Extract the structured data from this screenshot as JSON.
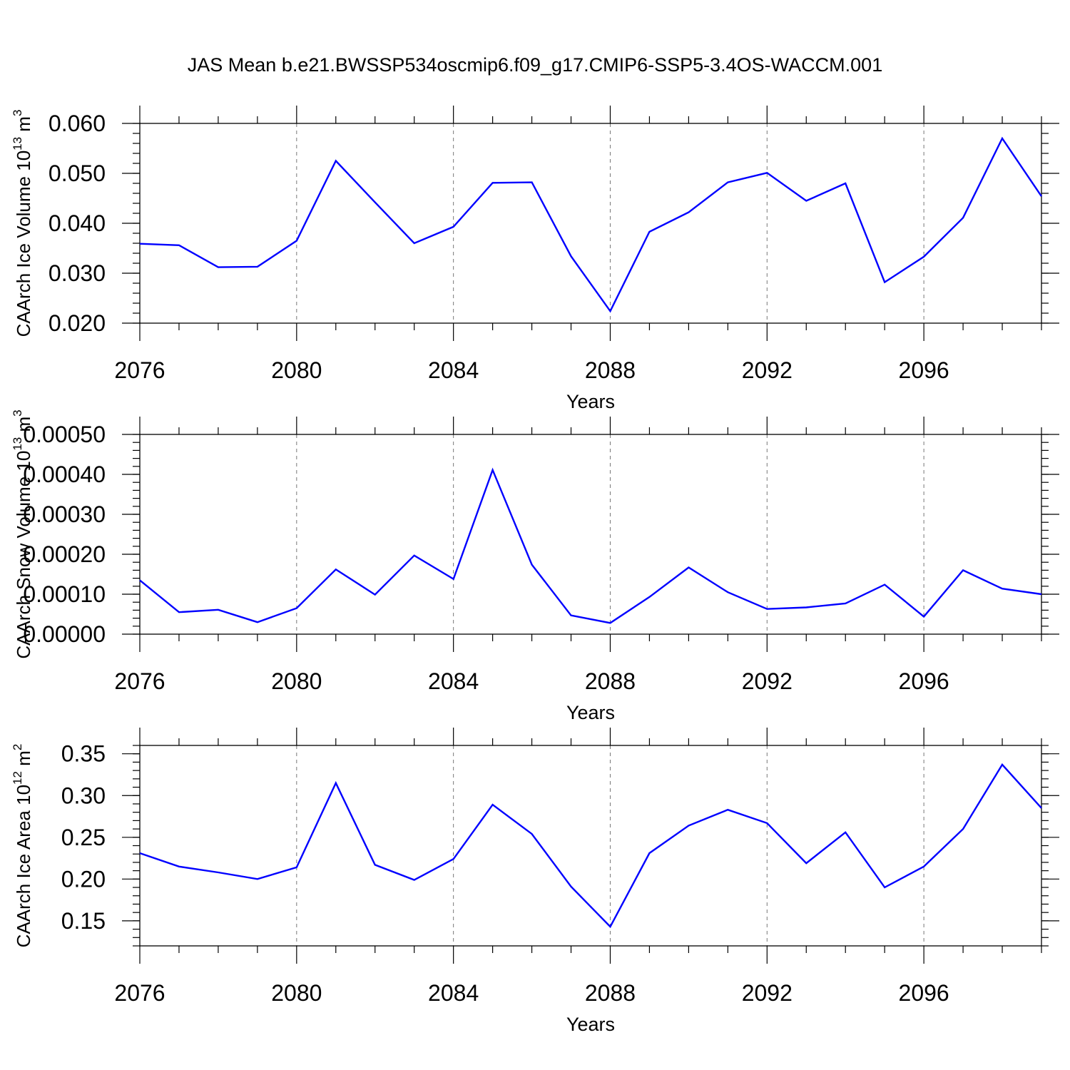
{
  "title": "JAS Mean b.e21.BWSSP534oscmip6.f09_g17.CMIP6-SSP5-3.4OS-WACCM.001",
  "colors": {
    "line": "#0000ff",
    "axis": "#000000",
    "grid": "#777777"
  },
  "chart_data": [
    {
      "type": "line",
      "xlabel": "Years",
      "ylabel": "CAArch Ice Volume 10",
      "ylabel_exp": "13",
      "ylabel_unit": " m",
      "ylabel_unit_exp": "3",
      "xlim": [
        2076,
        2099
      ],
      "ylim": [
        0.02,
        0.06
      ],
      "x_ticks": [
        2076,
        2080,
        2084,
        2088,
        2092,
        2096
      ],
      "x_tick_labels": [
        "2076",
        "2080",
        "2084",
        "2088",
        "2092",
        "2096"
      ],
      "y_ticks": [
        0.02,
        0.03,
        0.04,
        0.05,
        0.06
      ],
      "y_tick_labels": [
        "0.020",
        "0.030",
        "0.040",
        "0.050",
        "0.060"
      ],
      "y_minor_step": 0.002,
      "x": [
        2076,
        2077,
        2078,
        2079,
        2080,
        2081,
        2082,
        2083,
        2084,
        2085,
        2086,
        2087,
        2088,
        2089,
        2090,
        2091,
        2092,
        2093,
        2094,
        2095,
        2096,
        2097,
        2098,
        2099
      ],
      "values": [
        0.0359,
        0.0356,
        0.0312,
        0.0313,
        0.0365,
        0.0525,
        0.0442,
        0.036,
        0.0393,
        0.0481,
        0.0482,
        0.0334,
        0.0224,
        0.0383,
        0.0422,
        0.0482,
        0.0501,
        0.0445,
        0.048,
        0.0282,
        0.0333,
        0.0411,
        0.057,
        0.0454
      ]
    },
    {
      "type": "line",
      "xlabel": "Years",
      "ylabel": "CAArch Snow Volume 10",
      "ylabel_exp": "13",
      "ylabel_unit": " m",
      "ylabel_unit_exp": "3",
      "xlim": [
        2076,
        2099
      ],
      "ylim": [
        0,
        0.0005
      ],
      "x_ticks": [
        2076,
        2080,
        2084,
        2088,
        2092,
        2096
      ],
      "x_tick_labels": [
        "2076",
        "2080",
        "2084",
        "2088",
        "2092",
        "2096"
      ],
      "y_ticks": [
        0,
        0.0001,
        0.0002,
        0.0003,
        0.0004,
        0.0005
      ],
      "y_tick_labels": [
        "0.00000",
        "0.00010",
        "0.00020",
        "0.00030",
        "0.00040",
        "0.00050"
      ],
      "y_minor_step": 2e-05,
      "x": [
        2076,
        2077,
        2078,
        2079,
        2080,
        2081,
        2082,
        2083,
        2084,
        2085,
        2086,
        2087,
        2088,
        2089,
        2090,
        2091,
        2092,
        2093,
        2094,
        2095,
        2096,
        2097,
        2098,
        2099
      ],
      "values": [
        0.000135,
        5.5e-05,
        6.1e-05,
        3e-05,
        6.5e-05,
        0.000162,
        9.9e-05,
        0.000197,
        0.000138,
        0.000411,
        0.000174,
        4.7e-05,
        2.8e-05,
        9.3e-05,
        0.000167,
        0.000105,
        6.3e-05,
        6.7e-05,
        7.7e-05,
        0.000124,
        4.4e-05,
        0.00016,
        0.000114,
        0.0001
      ]
    },
    {
      "type": "line",
      "xlabel": "Years",
      "ylabel": "CAArch Ice Area 10",
      "ylabel_exp": "12",
      "ylabel_unit": " m",
      "ylabel_unit_exp": "2",
      "xlim": [
        2076,
        2099
      ],
      "ylim": [
        0.12,
        0.36
      ],
      "x_ticks": [
        2076,
        2080,
        2084,
        2088,
        2092,
        2096
      ],
      "x_tick_labels": [
        "2076",
        "2080",
        "2084",
        "2088",
        "2092",
        "2096"
      ],
      "y_ticks": [
        0.15,
        0.2,
        0.25,
        0.3,
        0.35
      ],
      "y_tick_labels": [
        "0.15",
        "0.20",
        "0.25",
        "0.30",
        "0.35"
      ],
      "y_minor_step": 0.01,
      "x": [
        2076,
        2077,
        2078,
        2079,
        2080,
        2081,
        2082,
        2083,
        2084,
        2085,
        2086,
        2087,
        2088,
        2089,
        2090,
        2091,
        2092,
        2093,
        2094,
        2095,
        2096,
        2097,
        2098,
        2099
      ],
      "values": [
        0.231,
        0.215,
        0.208,
        0.2,
        0.214,
        0.315,
        0.217,
        0.199,
        0.224,
        0.289,
        0.254,
        0.191,
        0.143,
        0.231,
        0.264,
        0.283,
        0.267,
        0.219,
        0.256,
        0.19,
        0.215,
        0.26,
        0.337,
        0.285
      ]
    }
  ]
}
